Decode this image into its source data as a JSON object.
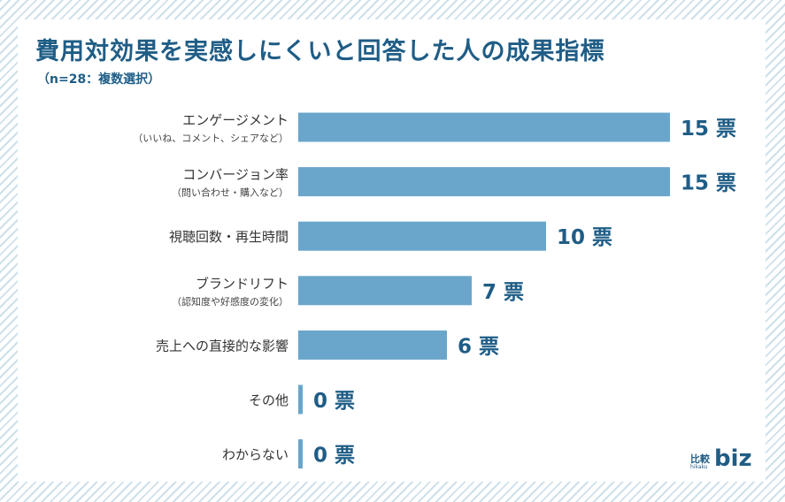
{
  "chart_data": {
    "type": "bar",
    "orientation": "horizontal",
    "title": "費用対効果を実感しにくいと回答した人の成果指標",
    "subtitle": "（n=28：複数選択）",
    "categories": [
      {
        "label": "エンゲージメント",
        "sublabel": "（いいね、コメント、シェアなど）"
      },
      {
        "label": "コンバージョン率",
        "sublabel": "（問い合わせ・購入など）"
      },
      {
        "label": "視聴回数・再生時間",
        "sublabel": ""
      },
      {
        "label": "ブランドリフト",
        "sublabel": "（認知度や好感度の変化）"
      },
      {
        "label": "売上への直接的な影響",
        "sublabel": ""
      },
      {
        "label": "その他",
        "sublabel": ""
      },
      {
        "label": "わからない",
        "sublabel": ""
      }
    ],
    "values": [
      15,
      15,
      10,
      7,
      6,
      0,
      0
    ],
    "value_labels": [
      "15 票",
      "15 票",
      "10 票",
      "7 票",
      "6 票",
      "0 票",
      "0 票"
    ],
    "xlim": [
      0,
      15
    ],
    "grid": false,
    "bar_color": "#6aa6cb",
    "text_color": "#1f5d86"
  },
  "logo": {
    "jp": "比較",
    "sub": "hikaku",
    "biz": "biz"
  }
}
